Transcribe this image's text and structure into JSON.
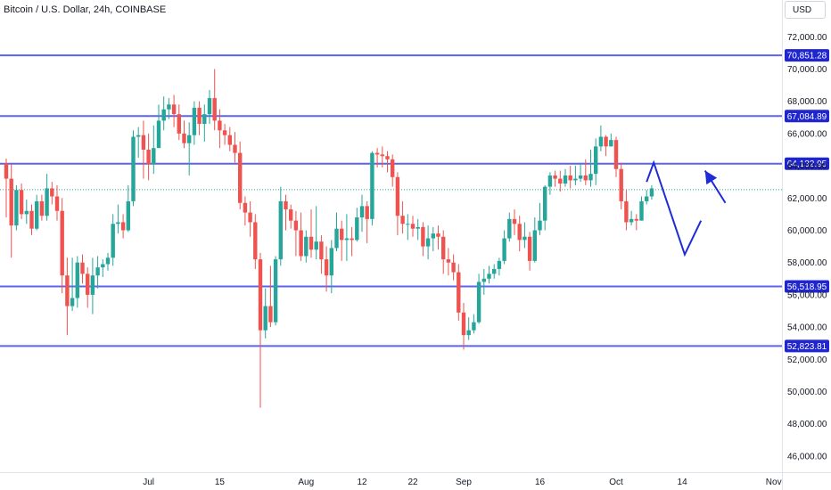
{
  "header": {
    "title": "Bitcoin / U.S. Dollar, 24h, COINBASE",
    "currency": "USD"
  },
  "colors": {
    "up": "#26a69a",
    "down": "#ef5350",
    "level_line": "#5c63f0",
    "label_bg": "#1f25cf",
    "annotation": "#1e2bd6",
    "axis_text": "#131722",
    "dotted": "#26a69a"
  },
  "chart_data": {
    "type": "candlestick",
    "title": "Bitcoin / U.S. Dollar, 24h, COINBASE",
    "ylim": [
      45000,
      73200
    ],
    "y_ticks": [
      46000,
      48000,
      50000,
      52000,
      54000,
      56000,
      58000,
      60000,
      62000,
      64000,
      66000,
      68000,
      70000,
      72000
    ],
    "y_tick_labels": [
      "46,000.00",
      "48,000.00",
      "50,000.00",
      "52,000.00",
      "54,000.00",
      "56,000.00",
      "58,000.00",
      "60,000.00",
      "62,000.00",
      "64,000.00",
      "66,000.00",
      "68,000.00",
      "70,000.00",
      "72,000.00"
    ],
    "x_labels": [
      {
        "label": "Jul",
        "day": 28
      },
      {
        "label": "15",
        "day": 42
      },
      {
        "label": "Aug",
        "day": 59
      },
      {
        "label": "12",
        "day": 70
      },
      {
        "label": "22",
        "day": 80
      },
      {
        "label": "Sep",
        "day": 90
      },
      {
        "label": "16",
        "day": 105
      },
      {
        "label": "Oct",
        "day": 120
      },
      {
        "label": "14",
        "day": 133
      },
      {
        "label": "Nov",
        "day": 151
      }
    ],
    "levels": [
      70851.28,
      67084.89,
      64132.95,
      56518.95,
      52823.81
    ],
    "level_labels": [
      "70,851.28",
      "67,084.89",
      "64,132.95",
      "56,518.95",
      "52,823.81"
    ],
    "current_price": 62520,
    "candles": [
      [
        64150,
        63200,
        64450,
        60800
      ],
      [
        63200,
        60300,
        64100,
        58300
      ],
      [
        60300,
        62500,
        62800,
        60000
      ],
      [
        62500,
        61000,
        62900,
        60700
      ],
      [
        61000,
        61200,
        61900,
        60400
      ],
      [
        61200,
        60100,
        61600,
        59700
      ],
      [
        60100,
        61800,
        62200,
        60000
      ],
      [
        61800,
        60900,
        62200,
        60600
      ],
      [
        60900,
        62600,
        63500,
        60600
      ],
      [
        62600,
        62100,
        63000,
        61600
      ],
      [
        62100,
        61200,
        62800,
        60600
      ],
      [
        61200,
        57200,
        62000,
        56100
      ],
      [
        57200,
        55300,
        58300,
        53500
      ],
      [
        55300,
        55800,
        58300,
        55000
      ],
      [
        55800,
        58000,
        58400,
        55200
      ],
      [
        58000,
        57300,
        58500,
        56700
      ],
      [
        57300,
        56000,
        57700,
        55200
      ],
      [
        56000,
        57200,
        58300,
        54800
      ],
      [
        57200,
        57700,
        58400,
        56400
      ],
      [
        57700,
        57900,
        58200,
        57100
      ],
      [
        57900,
        58300,
        58600,
        57500
      ],
      [
        58300,
        60400,
        61000,
        57800
      ],
      [
        60400,
        60500,
        61600,
        59800
      ],
      [
        60500,
        60000,
        61000,
        59500
      ],
      [
        60000,
        61800,
        62800,
        59900
      ],
      [
        61800,
        65800,
        66200,
        61500
      ],
      [
        65800,
        65900,
        66400,
        64500
      ],
      [
        65900,
        65000,
        66800,
        63200
      ],
      [
        65000,
        64100,
        66000,
        63100
      ],
      [
        64100,
        65100,
        66500,
        63500
      ],
      [
        65100,
        66800,
        67800,
        65600
      ],
      [
        66800,
        67500,
        68300,
        66200
      ],
      [
        67500,
        67800,
        68200,
        66900
      ],
      [
        67800,
        67200,
        68400,
        66400
      ],
      [
        67200,
        66000,
        67800,
        65600
      ],
      [
        66000,
        65400,
        66800,
        65100
      ],
      [
        65400,
        65900,
        66700,
        63400
      ],
      [
        65900,
        67600,
        68000,
        65300
      ],
      [
        67600,
        66600,
        68000,
        65900
      ],
      [
        66600,
        67200,
        67800,
        65500
      ],
      [
        67200,
        68200,
        68700,
        66600
      ],
      [
        68200,
        66800,
        70000,
        66200
      ],
      [
        66800,
        66200,
        67500,
        65100
      ],
      [
        66200,
        65900,
        66600,
        65300
      ],
      [
        65900,
        65300,
        66400,
        64900
      ],
      [
        65300,
        64800,
        66100,
        64200
      ],
      [
        64800,
        61700,
        65500,
        61300
      ],
      [
        61700,
        61100,
        62100,
        60300
      ],
      [
        61100,
        60500,
        61800,
        59600
      ],
      [
        60500,
        58200,
        61000,
        57600
      ],
      [
        58200,
        53800,
        58600,
        49000
      ],
      [
        53800,
        55300,
        56400,
        53300
      ],
      [
        55300,
        54300,
        57800,
        54000
      ],
      [
        54300,
        58200,
        58400,
        54100
      ],
      [
        58200,
        61800,
        62700,
        57800
      ],
      [
        61800,
        61300,
        62200,
        60000
      ],
      [
        61300,
        60600,
        61600,
        60100
      ],
      [
        60600,
        60000,
        61200,
        58400
      ],
      [
        60000,
        58400,
        61100,
        58100
      ],
      [
        58400,
        59600,
        60000,
        58000
      ],
      [
        59600,
        58800,
        61300,
        58300
      ],
      [
        58800,
        59300,
        61500,
        58200
      ],
      [
        59300,
        58200,
        59700,
        57300
      ],
      [
        58200,
        57200,
        59000,
        56200
      ],
      [
        57200,
        58900,
        59400,
        56100
      ],
      [
        58900,
        60100,
        61100,
        58700
      ],
      [
        60100,
        59400,
        60600,
        58100
      ],
      [
        59400,
        59500,
        61000,
        58100
      ],
      [
        59500,
        59400,
        60200,
        58400
      ],
      [
        59400,
        60800,
        61400,
        59300
      ],
      [
        60800,
        61500,
        62200,
        59900
      ],
      [
        61500,
        60700,
        61800,
        59200
      ],
      [
        60700,
        64800,
        64900,
        60300
      ],
      [
        64800,
        64700,
        65100,
        63900
      ],
      [
        64700,
        64600,
        65200,
        63900
      ],
      [
        64600,
        64400,
        64900,
        63600
      ],
      [
        64400,
        63300,
        64700,
        62700
      ],
      [
        63300,
        60900,
        63600,
        59700
      ],
      [
        60900,
        60400,
        61800,
        59800
      ],
      [
        60400,
        60400,
        61000,
        59400
      ],
      [
        60400,
        60100,
        60900,
        59600
      ],
      [
        60100,
        60200,
        60700,
        59400
      ],
      [
        60200,
        59000,
        60500,
        58400
      ],
      [
        59000,
        59500,
        60300,
        58200
      ],
      [
        59500,
        59800,
        60200,
        58700
      ],
      [
        59800,
        59600,
        60300,
        58800
      ],
      [
        59600,
        58200,
        60000,
        57300
      ],
      [
        58200,
        58000,
        58900,
        57200
      ],
      [
        58000,
        57400,
        58500,
        56900
      ],
      [
        57400,
        54900,
        57900,
        54400
      ],
      [
        54900,
        53500,
        55500,
        52600
      ],
      [
        53500,
        53800,
        54600,
        53200
      ],
      [
        53800,
        54300,
        54800,
        53600
      ],
      [
        54300,
        56800,
        57300,
        54200
      ],
      [
        56800,
        57000,
        57600,
        56000
      ],
      [
        57000,
        57300,
        57800,
        56700
      ],
      [
        57300,
        57600,
        57900,
        57000
      ],
      [
        57600,
        58100,
        58300,
        57200
      ],
      [
        58100,
        59500,
        60000,
        57900
      ],
      [
        59500,
        60700,
        61100,
        59300
      ],
      [
        60700,
        60400,
        61300,
        59700
      ],
      [
        60400,
        59400,
        60900,
        58700
      ],
      [
        59400,
        59600,
        60500,
        58900
      ],
      [
        59600,
        58100,
        59900,
        57500
      ],
      [
        58100,
        60000,
        60800,
        58000
      ],
      [
        60000,
        60600,
        61700,
        59700
      ],
      [
        60600,
        62700,
        62800,
        60000
      ],
      [
        62700,
        63400,
        63600,
        62200
      ],
      [
        63400,
        63200,
        63700,
        62700
      ],
      [
        63200,
        62900,
        63700,
        62400
      ],
      [
        62900,
        63400,
        63800,
        62700
      ],
      [
        63400,
        63100,
        64000,
        62600
      ],
      [
        63100,
        63200,
        64000,
        62800
      ],
      [
        63200,
        63400,
        64200,
        63000
      ],
      [
        63400,
        63100,
        64400,
        62800
      ],
      [
        63100,
        63500,
        65000,
        62700
      ],
      [
        63500,
        65200,
        65700,
        62800
      ],
      [
        65200,
        65800,
        66500,
        64900
      ],
      [
        65800,
        65200,
        65900,
        64600
      ],
      [
        65200,
        65600,
        66000,
        65200
      ],
      [
        65600,
        63800,
        65800,
        63300
      ],
      [
        63800,
        61800,
        64200,
        61300
      ],
      [
        61800,
        60500,
        62500,
        60000
      ],
      [
        60500,
        60700,
        61200,
        60300
      ],
      [
        60700,
        60600,
        61000,
        60000
      ],
      [
        60600,
        61800,
        62100,
        60600
      ],
      [
        61800,
        62100,
        62500,
        61600
      ],
      [
        62100,
        62600,
        62800,
        61900
      ]
    ],
    "projection": [
      {
        "day": 126.0,
        "price": 63000
      },
      {
        "day": 127.4,
        "price": 64200
      },
      {
        "day": 133.5,
        "price": 58500
      },
      {
        "day": 136.7,
        "price": 60600
      }
    ],
    "arrow": {
      "from_day": 141.5,
      "from_price": 61700,
      "to_day": 137.5,
      "to_price": 63700
    }
  }
}
